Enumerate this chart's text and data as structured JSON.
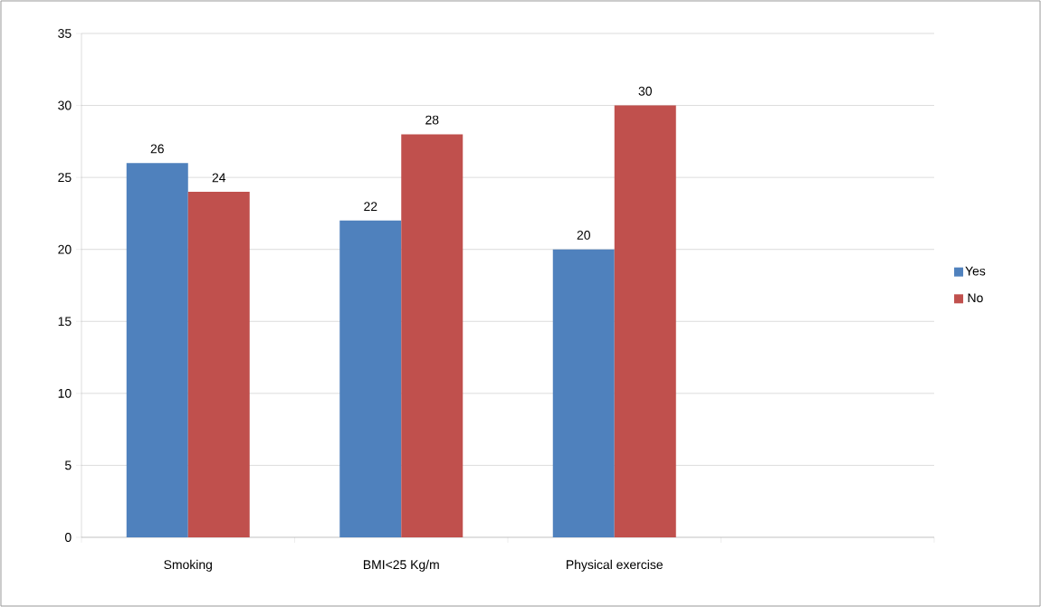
{
  "chart_data": {
    "type": "bar",
    "categories": [
      "Smoking",
      "BMI<25 Kg/m",
      "Physical exercise",
      null
    ],
    "series": [
      {
        "name": "Yes",
        "color": "#4f81bd",
        "values": [
          26,
          22,
          20,
          null
        ]
      },
      {
        "name": "No",
        "color": "#c0504d",
        "values": [
          24,
          28,
          30,
          null
        ]
      }
    ],
    "ylim": [
      0,
      35
    ],
    "yticks": [
      0,
      5,
      10,
      15,
      20,
      25,
      30,
      35
    ],
    "grid": "y",
    "legend": "right",
    "data_labels": true
  }
}
